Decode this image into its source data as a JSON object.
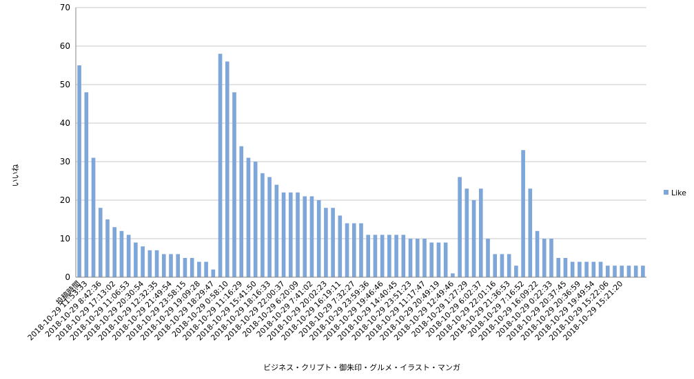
{
  "chart_data": {
    "type": "bar",
    "title": "",
    "xlabel": "ビジネス・クリプト・御朱印・グルメ・イラスト・マンガ",
    "ylabel": "いいね",
    "ylim": [
      0,
      70
    ],
    "yticks": [
      0,
      10,
      20,
      30,
      40,
      50,
      60,
      70
    ],
    "grid": true,
    "legend_position": "right",
    "colors": {
      "bar": "#7ea6d9",
      "grid": "#c8c8c8",
      "axis": "#868686"
    },
    "first_category_label": "投稿時間",
    "x_tick_labels": [
      "2018-10-29 11:53:33",
      "2018-10-29 8:42:36",
      "2018-10-29 17:13:02",
      "2018-10-29 11:06:53",
      "2018-10-29 20:30:54",
      "2018-10-29 12:32:35",
      "2018-10-29 21:49:54",
      "2018-10-29 23:58:15",
      "2018-10-29 19:09:28",
      "2018-10-29 18:29:47",
      "2018-10-29 0:58:10",
      "2018-10-29 11:16:29",
      "2018-10-29 15:41:50",
      "2018-10-29 18:16:33",
      "2018-10-29 22:00:37",
      "2018-10-29 6:20:09",
      "2018-10-29 7:41:02",
      "2018-10-29 20:02:23",
      "2018-10-29 16:19:11",
      "2018-10-29 7:32:27",
      "2018-10-29 23:59:36",
      "2018-10-29 19:46:46",
      "2018-10-29 14:40:45",
      "2018-10-29 23:51:23",
      "2018-10-29 11:17:47",
      "2018-10-29 20:49:19",
      "2018-10-29 12:49:46",
      "2018-10-29 1:27:29",
      "2018-10-29 6:02:37",
      "2018-10-29 22:01:16",
      "2018-10-29 21:36:53",
      "2018-10-29 7:16:52",
      "2018-10-29 16:09:22",
      "2018-10-29 0:22:33",
      "2018-10-29 20:37:45",
      "2018-10-29 20:36:59",
      "2018-10-29 19:49:54",
      "2018-10-29 15:22:06",
      "2018-10-29 15:21:20"
    ],
    "series": [
      {
        "name": "Like",
        "values": [
          55,
          48,
          31,
          18,
          15,
          13,
          12,
          11,
          9,
          8,
          7,
          7,
          6,
          6,
          6,
          5,
          5,
          4,
          4,
          2,
          58,
          56,
          48,
          34,
          31,
          30,
          27,
          26,
          24,
          22,
          22,
          22,
          21,
          21,
          20,
          18,
          18,
          16,
          14,
          14,
          14,
          11,
          11,
          11,
          11,
          11,
          11,
          10,
          10,
          10,
          9,
          9,
          9,
          1,
          26,
          23,
          20,
          23,
          10,
          6,
          6,
          6,
          3,
          33,
          23,
          12,
          10,
          10,
          5,
          5,
          4,
          4,
          4,
          4,
          4,
          3,
          3,
          3,
          3,
          3,
          3
        ]
      }
    ]
  }
}
